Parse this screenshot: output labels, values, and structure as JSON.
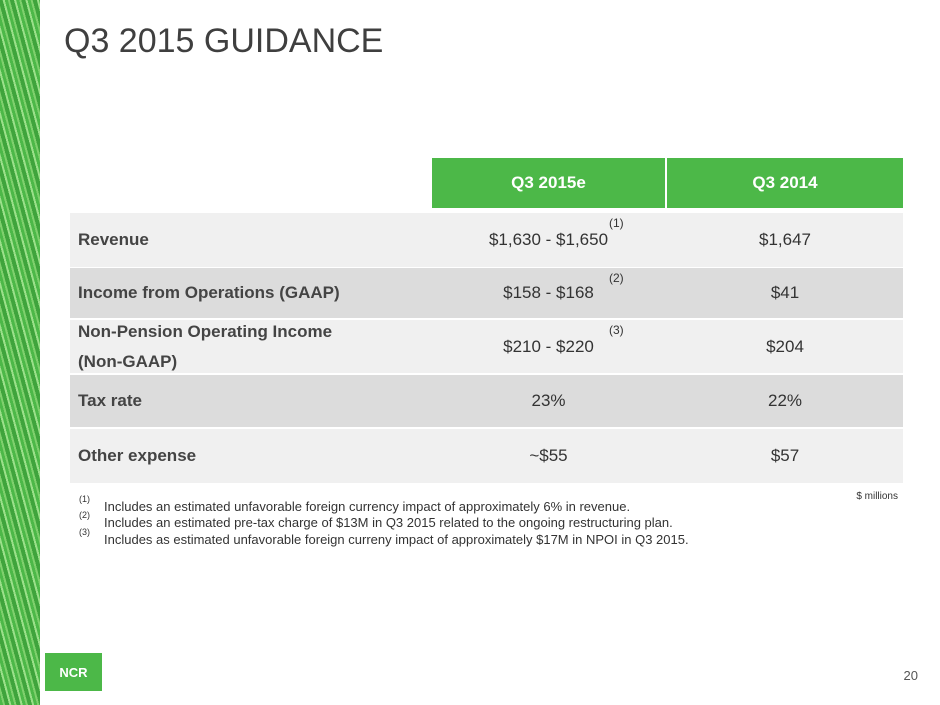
{
  "title": "Q3 2015 GUIDANCE",
  "table": {
    "header": [
      "Q3 2015e",
      "Q3 2014"
    ],
    "rows": [
      {
        "label": "Revenue",
        "estimate": "$1,630 - $1,650",
        "note": "(1)",
        "prior": "$1,647"
      },
      {
        "label": "Income from Operations (GAAP)",
        "estimate": "$158 - $168",
        "note": "(2)",
        "prior": "$41"
      },
      {
        "label": "Non-Pension Operating Income (Non-GAAP)",
        "estimate": "$210 - $220",
        "note": "(3)",
        "prior": "$204"
      },
      {
        "label": "Tax rate",
        "estimate": "23%",
        "prior": "22%"
      },
      {
        "label": "Other expense",
        "estimate": "~$55",
        "prior": "$57"
      }
    ]
  },
  "units": "$ millions",
  "footnotes": [
    {
      "marker": "(1)",
      "text": "Includes an estimated unfavorable foreign currency impact of approximately 6% in revenue."
    },
    {
      "marker": "(2)",
      "text": "Includes an estimated pre-tax charge of $13M in Q3 2015 related to the ongoing restructuring plan."
    },
    {
      "marker": "(3)",
      "text": "Includes as estimated unfavorable foreign curreny impact of approximately $17M in NPOI in Q3 2015."
    }
  ],
  "logo": "NCR",
  "page_number": "20"
}
